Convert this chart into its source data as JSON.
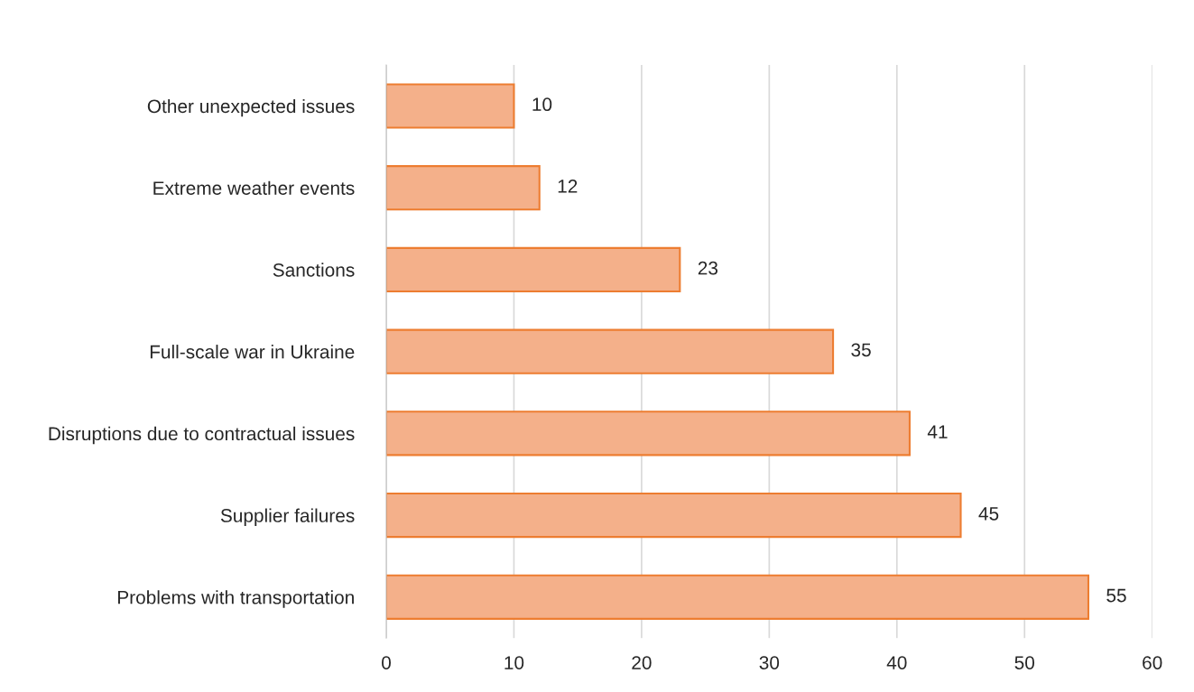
{
  "chart_data": {
    "type": "bar",
    "orientation": "horizontal",
    "categories": [
      "Other unexpected issues",
      "Extreme weather events",
      "Sanctions",
      "Full-scale war in Ukraine",
      "Disruptions due to contractual issues",
      "Supplier failures",
      "Problems with transportation"
    ],
    "values": [
      10,
      12,
      23,
      35,
      41,
      45,
      55
    ],
    "color": "#f4b08a",
    "xlim": [
      0,
      60
    ],
    "xticks": [
      0,
      10,
      20,
      30,
      40,
      50,
      60
    ],
    "grid": "x",
    "data_labels": true,
    "legend": false
  }
}
